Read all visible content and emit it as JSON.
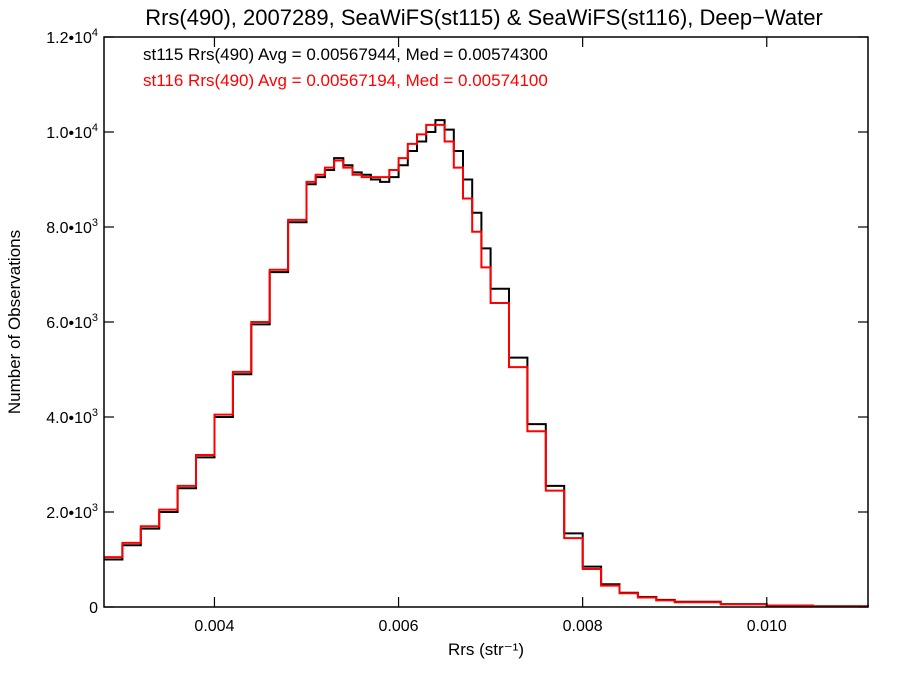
{
  "chart_data": {
    "type": "line",
    "title": "Rrs(490), 2007289, SeaWiFS(st115) & SeaWiFS(st116), Deep−Water",
    "xlabel": "Rrs (str⁻¹)",
    "ylabel": "Number of Observations",
    "xlim": [
      0.0028,
      0.0111
    ],
    "ylim": [
      0,
      12000
    ],
    "x_ticks": [
      {
        "value": 0.004,
        "label": "0.004"
      },
      {
        "value": 0.006,
        "label": "0.006"
      },
      {
        "value": 0.008,
        "label": "0.008"
      },
      {
        "value": 0.01,
        "label": "0.010"
      }
    ],
    "y_ticks": [
      {
        "value": 0,
        "mant": "0",
        "exp": ""
      },
      {
        "value": 2000,
        "mant": "2.0•10",
        "exp": "3"
      },
      {
        "value": 4000,
        "mant": "4.0•10",
        "exp": "3"
      },
      {
        "value": 6000,
        "mant": "6.0•10",
        "exp": "3"
      },
      {
        "value": 8000,
        "mant": "8.0•10",
        "exp": "3"
      },
      {
        "value": 10000,
        "mant": "1.0•10",
        "exp": "4"
      },
      {
        "value": 12000,
        "mant": "1.2•10",
        "exp": "4"
      }
    ],
    "annotations": [
      {
        "text": "st115 Rrs(490) Avg = 0.00567944, Med = 0.00574300",
        "color": "#000000"
      },
      {
        "text": "st116 Rrs(490) Avg = 0.00567194, Med = 0.00574100",
        "color": "#ff0000"
      }
    ],
    "grid": false,
    "series": [
      {
        "color": "#000000",
        "x": [
          0.0028,
          0.003,
          0.0032,
          0.0034,
          0.0036,
          0.0038,
          0.004,
          0.0042,
          0.0044,
          0.0046,
          0.0048,
          0.005,
          0.0051,
          0.0052,
          0.0053,
          0.0054,
          0.0055,
          0.0056,
          0.0057,
          0.0058,
          0.0059,
          0.006,
          0.0061,
          0.0062,
          0.0063,
          0.0064,
          0.0065,
          0.0066,
          0.0067,
          0.0068,
          0.0069,
          0.007,
          0.0072,
          0.0074,
          0.0076,
          0.0078,
          0.008,
          0.0082,
          0.0084,
          0.0086,
          0.0088,
          0.009,
          0.0095,
          0.01,
          0.0105,
          0.0111
        ],
        "y": [
          1000,
          1300,
          1650,
          2000,
          2500,
          3150,
          4000,
          4900,
          5950,
          7050,
          8100,
          8900,
          9050,
          9200,
          9450,
          9300,
          9150,
          9100,
          9000,
          8950,
          9050,
          9300,
          9600,
          9800,
          10000,
          10250,
          10050,
          9600,
          9000,
          8300,
          7550,
          6700,
          5250,
          3850,
          2550,
          1550,
          850,
          480,
          300,
          210,
          150,
          110,
          60,
          30,
          15,
          5
        ]
      },
      {
        "color": "#ff0000",
        "x": [
          0.0028,
          0.003,
          0.0032,
          0.0034,
          0.0036,
          0.0038,
          0.004,
          0.0042,
          0.0044,
          0.0046,
          0.0048,
          0.005,
          0.0051,
          0.0052,
          0.0053,
          0.0054,
          0.0055,
          0.0056,
          0.0057,
          0.0058,
          0.0059,
          0.006,
          0.0061,
          0.0062,
          0.0063,
          0.0064,
          0.0065,
          0.0066,
          0.0067,
          0.0068,
          0.0069,
          0.007,
          0.0072,
          0.0074,
          0.0076,
          0.0078,
          0.008,
          0.0082,
          0.0084,
          0.0086,
          0.0088,
          0.009,
          0.0095,
          0.01,
          0.0105,
          0.0111
        ],
        "y": [
          1050,
          1350,
          1700,
          2050,
          2550,
          3200,
          4050,
          4950,
          6000,
          7100,
          8150,
          8950,
          9100,
          9250,
          9400,
          9250,
          9100,
          9050,
          9050,
          9050,
          9200,
          9450,
          9750,
          9950,
          10150,
          10150,
          9800,
          9250,
          8600,
          7900,
          7150,
          6400,
          5050,
          3700,
          2450,
          1450,
          800,
          450,
          290,
          200,
          140,
          100,
          55,
          28,
          12,
          5
        ]
      }
    ]
  }
}
